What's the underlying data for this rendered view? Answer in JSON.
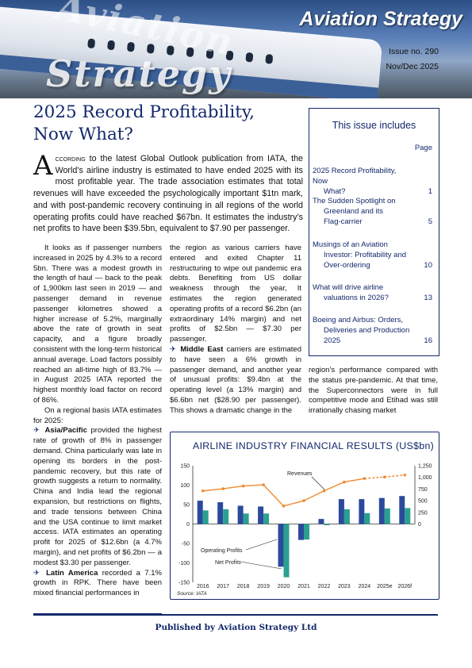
{
  "masthead": {
    "title": "Aviation Strategy",
    "logo_word1": "Aviation",
    "logo_word2": "Strategy",
    "issue": "Issue no. 290",
    "date": "Nov/Dec 2025"
  },
  "article": {
    "headline": "2025 Record Profitability, Now What?",
    "lead_dropcap": "A",
    "lead_smallcaps": "ccording",
    "lead_text": " to the latest Global Outlook publication from IATA, the World’s airline industry is estimated to have ended 2025 with its most profitable year. The trade association estimates that total revenues will have exceeded the psychologically important $1tn mark, and with post-pandemic recovery continuing in all regions of the world operating profits could have reached $67bn. It estimates the industry’s net profits to have been $39.5bn, equivalent to $7.90 per passenger.",
    "col1": [
      "It looks as if passenger numbers increased in 2025 by 4.3% to a record 5bn. There was a modest growth in the length of haul — back to the peak of 1,900km last seen in 2019 — and passenger demand in revenue passenger kilometres showed a higher increase of 5.2%, marginally above the rate of growth in seat capacity, and a figure broadly consistent with the long-term historical annual average. Load factors possibly reached an all-time high of 83.7% — in August 2025 IATA reported the highest monthly load factor on record of 86%.",
      "On a regional basis IATA estimates for 2025:"
    ],
    "asia_label": "Asia/Pacific",
    "asia_text": " provided the highest rate of growth of 8% in passenger demand. China particularly was late in opening its borders in the post-pandemic recovery, but this rate of growth suggests a return to normality. China and India lead the regional expansion, but restrictions on flights, and trade tensions between China and the USA continue to limit market access. IATA estimates an operating profit for 2025 of $12.6bn (a 4.7% margin), and net profits of $6.2bn — a modest $3.30 per passenger.",
    "latam_label": "Latin America",
    "latam_text": " recorded a 7.1% growth in RPK. There have been mixed financial performances in",
    "col2_a": "the region as various carriers have entered and exited Chapter 11 restructuring to wipe out pandemic era debts. Benefiting from US dollar weakness through the year, It estimates the region generated operating profits of a record $6.2bn (an extraordinary 14% margin) and net profits of $2.5bn — $7.30 per passenger.",
    "me_label": "Middle East",
    "me_text": " carriers are estimated to have seen a 6% growth in passenger demand, and another year of unusual profits: $9.4bn at the operating level (a 13% margin) and $6.6bn net ($28.90 per passenger). This shows a dramatic change in the",
    "col3_a": "region’s performance compared with the status pre-pandemic. At that time, the Superconnectors were in full competitive mode and Etihad was still irrationally chasing market"
  },
  "sidebar": {
    "title": "This issue includes",
    "page_header": "Page",
    "items": [
      {
        "line1": "2025 Record Profitability, Now",
        "line2": "What?",
        "line3": "",
        "page": "1"
      },
      {
        "line1": "The Sudden Spotlight on",
        "line2": "Greenland and its",
        "line3": "Flag-carrier",
        "page": "5"
      },
      {
        "line1": "Musings of an Aviation",
        "line2": "Investor: Profitability and",
        "line3": "Over-ordering",
        "page": "10"
      },
      {
        "line1": "What will drive airline",
        "line2": "valuations in 2026?",
        "line3": "",
        "page": "13"
      },
      {
        "line1": "Boeing and Airbus: Orders,",
        "line2": "Deliveries and Production",
        "line3": "2025",
        "page": "16"
      }
    ]
  },
  "chart_data": {
    "type": "bar",
    "title": "AIRLINE INDUSTRY FINANCIAL RESULTS (US$bn)",
    "categories": [
      "2016",
      "2017",
      "2018",
      "2019",
      "2020",
      "2021",
      "2022",
      "2023",
      "2024",
      "2025e",
      "2026f"
    ],
    "series": [
      {
        "name": "Operating Profits",
        "values": [
          60,
          56,
          47,
          45,
          -110,
          -41,
          13,
          64,
          64,
          67,
          72
        ],
        "color": "#2b4a9c",
        "axis": "left"
      },
      {
        "name": "Net Profits",
        "values": [
          35,
          38,
          27,
          27,
          -137,
          -40,
          -3,
          38,
          28,
          40,
          41
        ],
        "color": "#2aa090",
        "axis": "left"
      },
      {
        "name": "Revenues",
        "values": [
          710,
          755,
          815,
          840,
          385,
          500,
          710,
          900,
          975,
          1008,
          1050
        ],
        "color": "#f08a30",
        "axis": "right",
        "type": "line",
        "dashed_from": "2024"
      }
    ],
    "ylim_left": [
      -150,
      150
    ],
    "yticks_left": [
      "150",
      "100",
      "50",
      "0",
      "-50",
      "-100",
      "-150"
    ],
    "ylim_right": [
      -1250,
      1250
    ],
    "yticks_right": [
      "1,250",
      "1,000",
      "750",
      "500",
      "250",
      "0"
    ],
    "source": "Source:  IATA",
    "grid": false,
    "legend": "annotations"
  },
  "footer": {
    "text": "Published by Aviation Strategy Ltd"
  },
  "colors": {
    "brand": "#13286b",
    "operating": "#2b4a9c",
    "net": "#2aa090",
    "revenue": "#f08a30"
  }
}
